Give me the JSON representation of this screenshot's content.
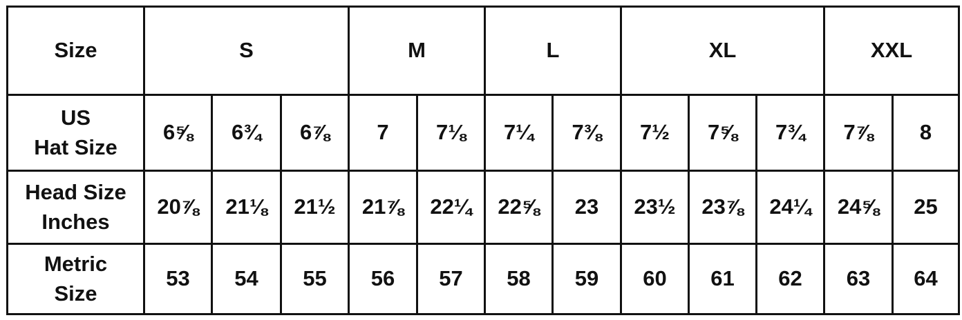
{
  "table": {
    "header": {
      "label": "Size",
      "groups": [
        {
          "label": "S",
          "span": 3
        },
        {
          "label": "M",
          "span": 2
        },
        {
          "label": "L",
          "span": 2
        },
        {
          "label": "XL",
          "span": 3
        },
        {
          "label": "XXL",
          "span": 2
        }
      ]
    },
    "rows": [
      {
        "label_line1": "US",
        "label_line2": "Hat Size",
        "values": [
          "6⅝",
          "6¾",
          "6⅞",
          "7",
          "7⅛",
          "7¼",
          "7⅜",
          "7½",
          "7⅝",
          "7¾",
          "7⅞",
          "8"
        ]
      },
      {
        "label_line1": "Head Size",
        "label_line2": "Inches",
        "values": [
          "20⅞",
          "21⅛",
          "21½",
          "21⅞",
          "22¼",
          "22⅝",
          "23",
          "23½",
          "23⅞",
          "24¼",
          "24⅝",
          "25"
        ]
      },
      {
        "label_line1": "Metric",
        "label_line2": "Size",
        "values": [
          "53",
          "54",
          "55",
          "56",
          "57",
          "58",
          "59",
          "60",
          "61",
          "62",
          "63",
          "64"
        ]
      }
    ]
  }
}
